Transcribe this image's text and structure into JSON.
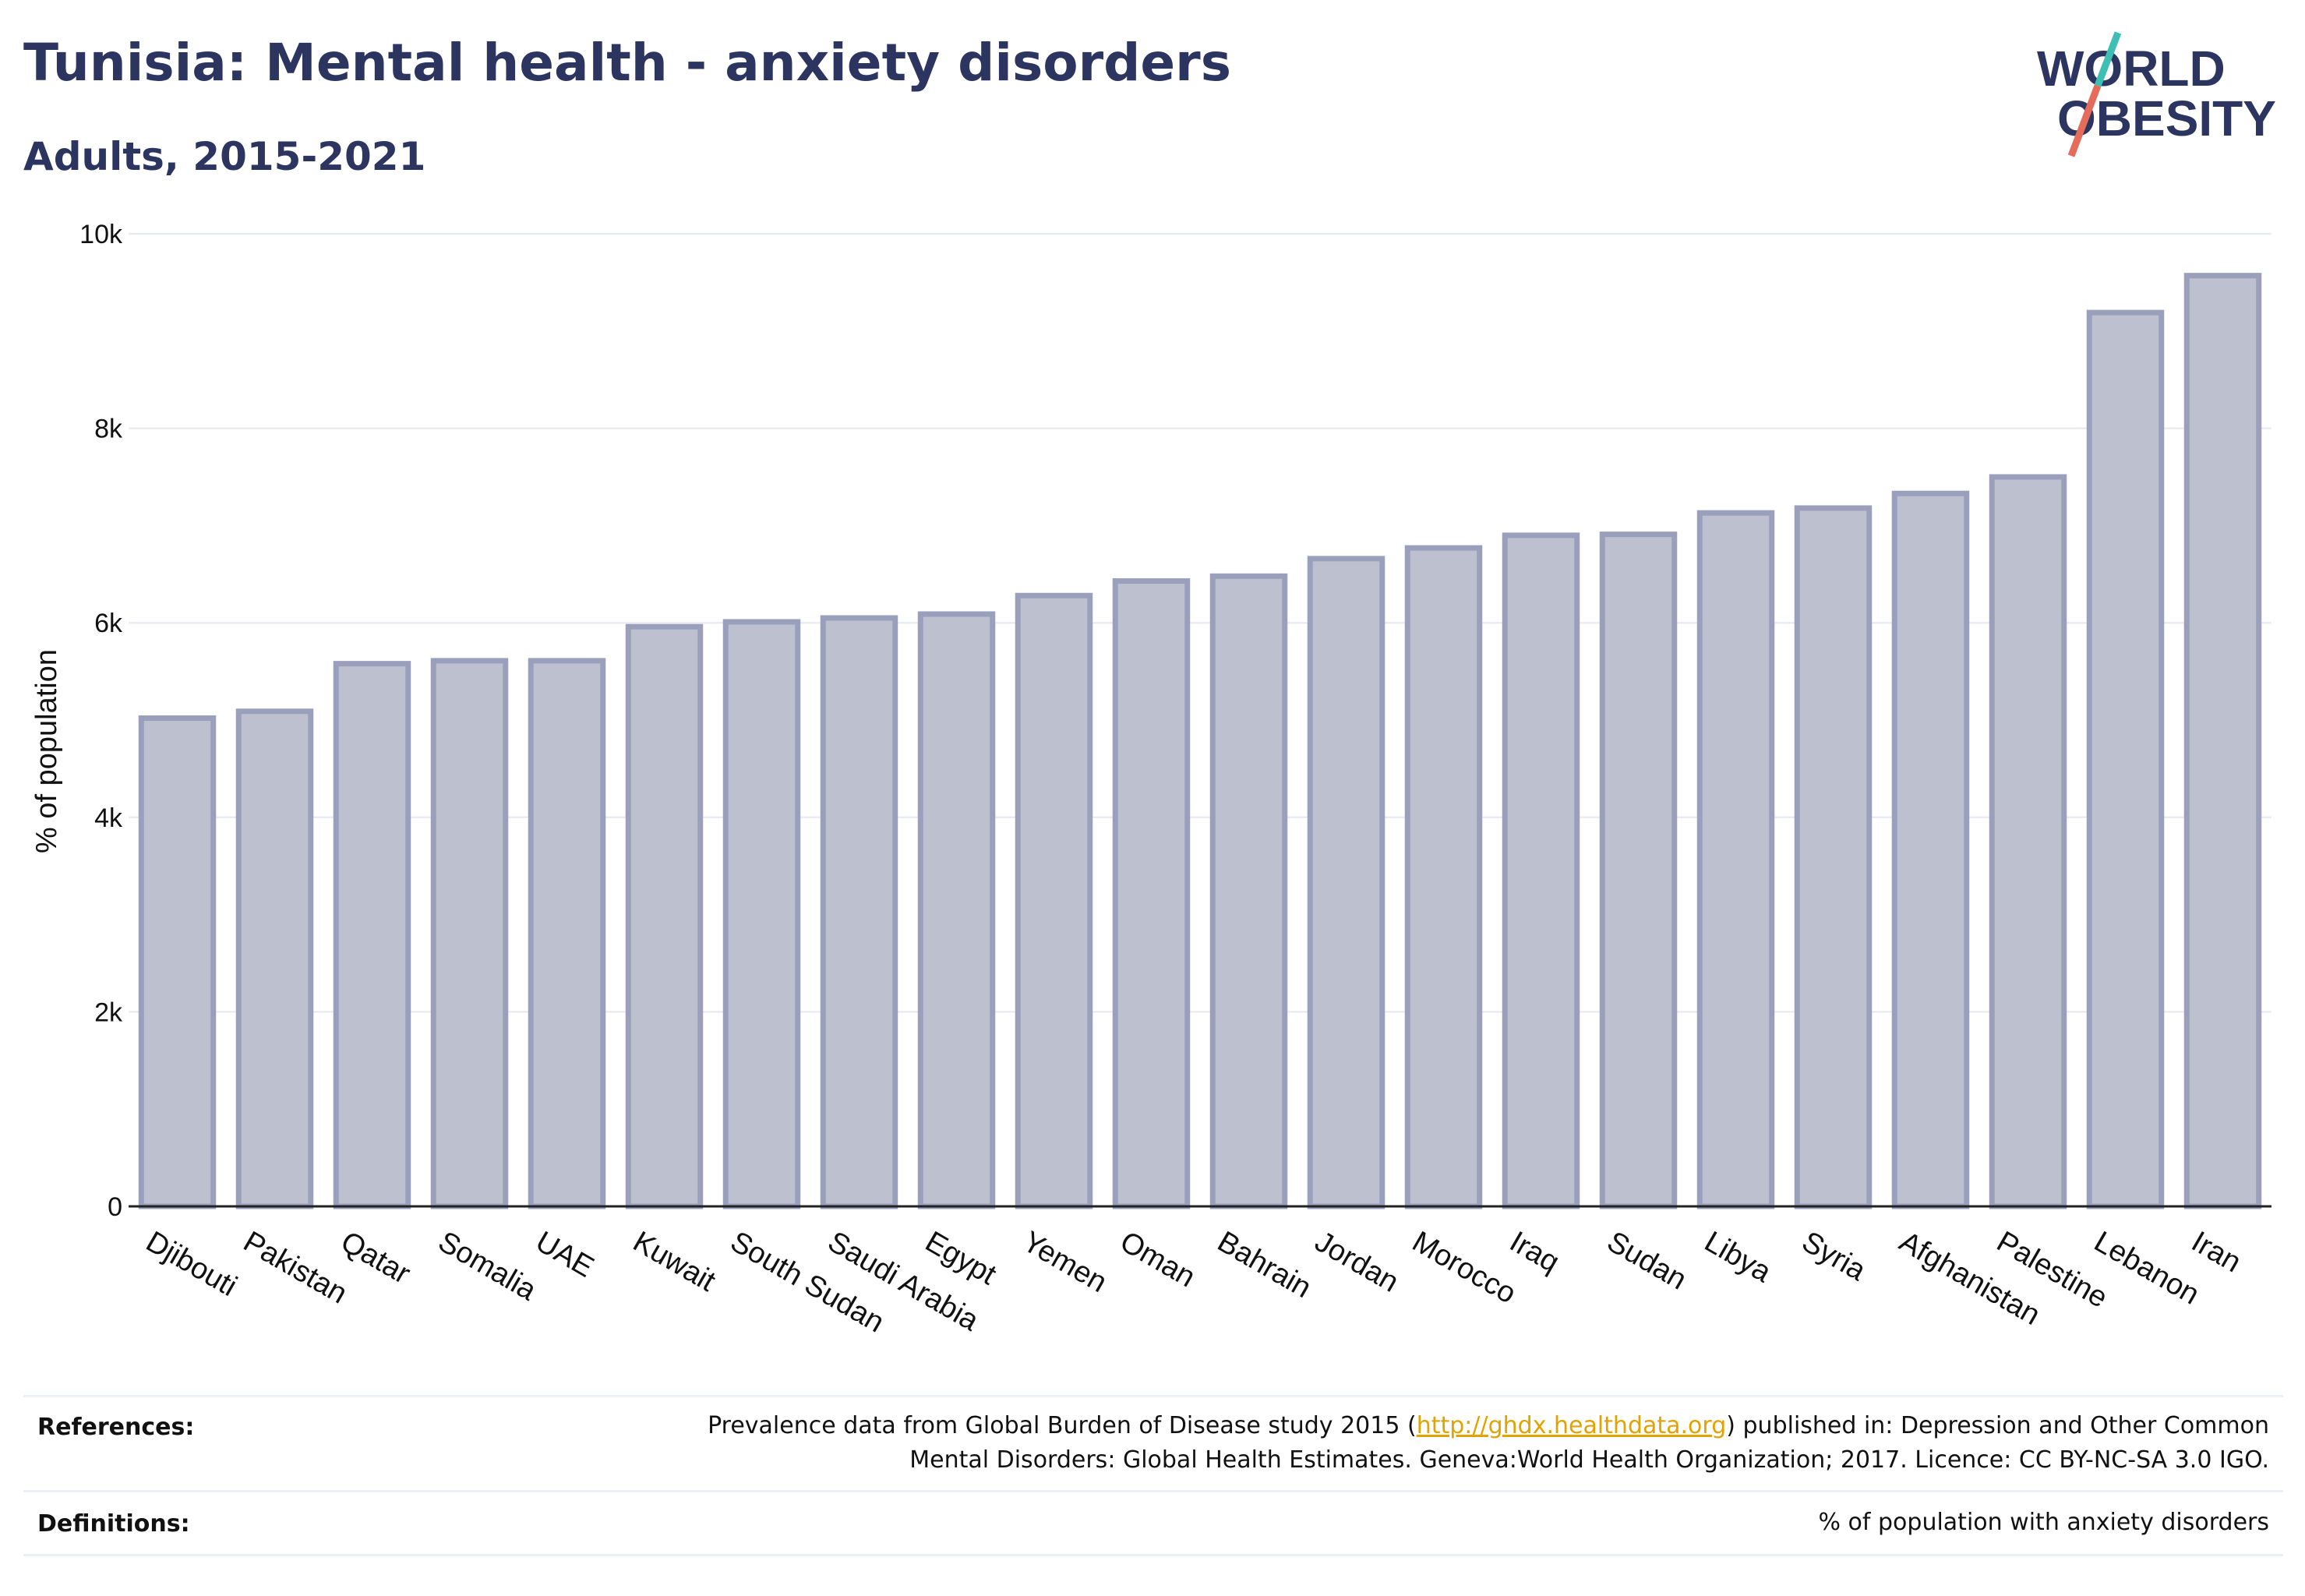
{
  "header": {
    "title": "Tunisia: Mental health - anxiety disorders",
    "subtitle": "Adults, 2015-2021"
  },
  "logo": {
    "line1": "WORLD",
    "line2": "OBESITY",
    "colors": {
      "text": "#2b3560",
      "slash_top": "#3ebfb4",
      "slash_bottom": "#e56b5a"
    }
  },
  "chart_data": {
    "type": "bar",
    "title": "Tunisia: Mental health - anxiety disorders",
    "subtitle": "Adults, 2015-2021",
    "xlabel": "",
    "ylabel": "% of population",
    "ylim": [
      0,
      10000
    ],
    "yticks": [
      0,
      2000,
      4000,
      6000,
      8000,
      10000
    ],
    "ytick_labels": [
      "0",
      "2k",
      "4k",
      "6k",
      "8k",
      "10k"
    ],
    "grid": true,
    "legend": "none",
    "bar_fill": "#bcc0cf",
    "bar_stroke": "#9aa0bc",
    "categories": [
      "Djibouti",
      "Pakistan",
      "Qatar",
      "Somalia",
      "UAE",
      "Kuwait",
      "South Sudan",
      "Saudi Arabia",
      "Egypt",
      "Yemen",
      "Oman",
      "Bahrain",
      "Jordan",
      "Morocco",
      "Iraq",
      "Sudan",
      "Libya",
      "Syria",
      "Afghanistan",
      "Palestine",
      "Lebanon",
      "Iran"
    ],
    "values": [
      5020,
      5090,
      5580,
      5610,
      5610,
      5960,
      6010,
      6050,
      6090,
      6280,
      6430,
      6480,
      6660,
      6770,
      6900,
      6910,
      7130,
      7180,
      7330,
      7500,
      9190,
      9570
    ]
  },
  "references": {
    "label": "References:",
    "text_before": "Prevalence data from Global Burden of Disease study 2015 (",
    "link": "http://ghdx.healthdata.org",
    "text_after": ") published in: Depression and Other Common",
    "line2": "Mental Disorders: Global Health Estimates. Geneva:World Health Organization; 2017. Licence: CC BY-NC-SA 3.0 IGO."
  },
  "definitions": {
    "label": "Definitions:",
    "text": "% of population with anxiety disorders"
  }
}
